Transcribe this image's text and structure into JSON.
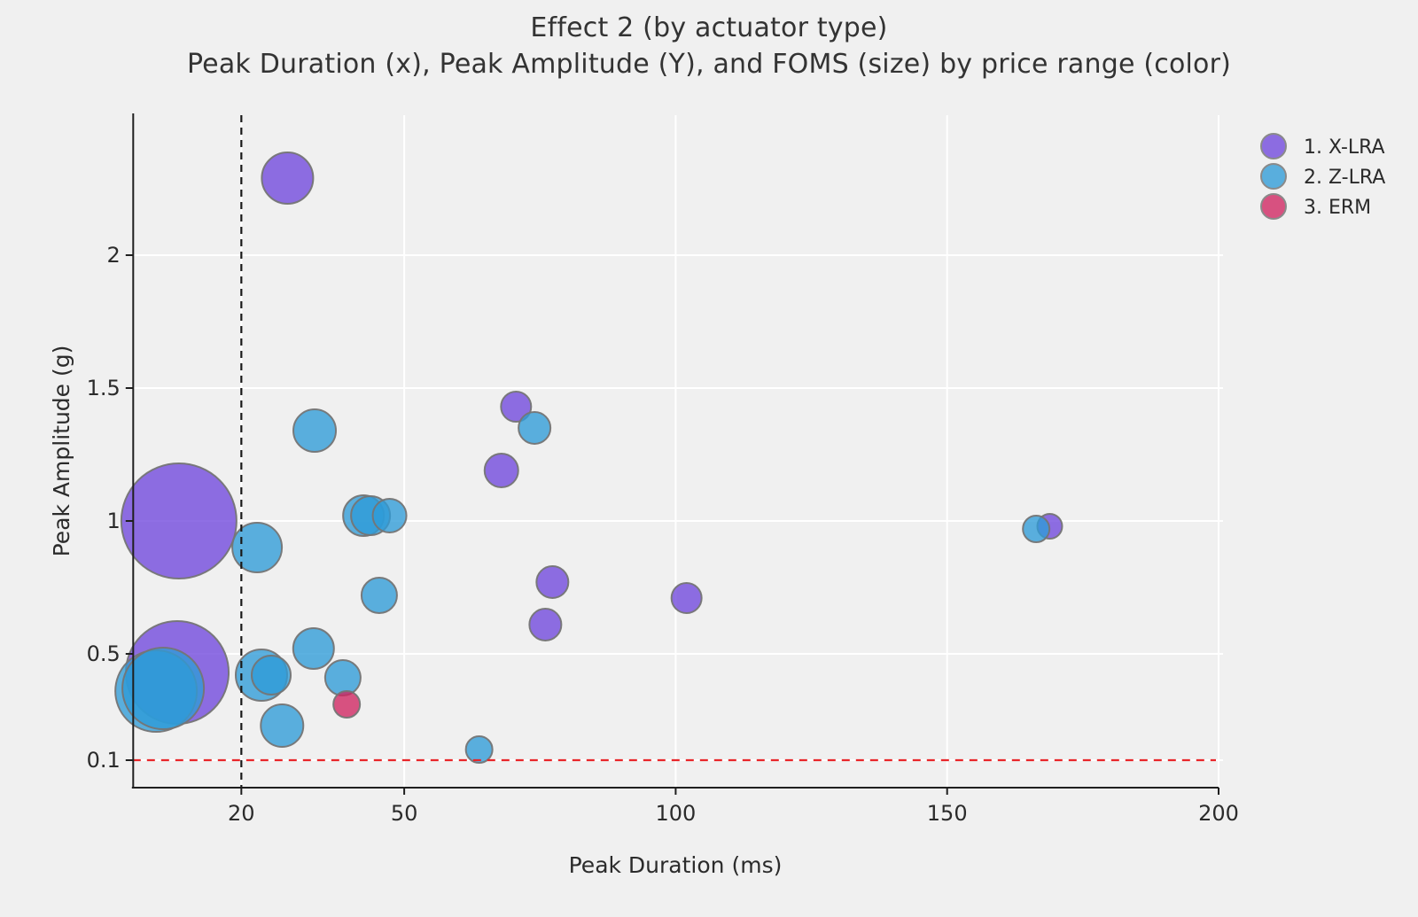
{
  "page": {
    "background": "#f0f0f0"
  },
  "chart_data": {
    "type": "scatter",
    "title": "Effect 2 (by actuator type)",
    "subtitle": "Peak Duration (x), Peak Amplitude (Y), and FOMS (size) by price range (color)",
    "xlabel": "Peak Duration (ms)",
    "ylabel": "Peak Amplitude (g)",
    "x_ticks": [
      20,
      50,
      100,
      150,
      200
    ],
    "y_ticks": [
      0.1,
      0.5,
      1,
      1.5,
      2
    ],
    "xlim": [
      0,
      200
    ],
    "ylim": [
      0,
      2.53
    ],
    "grid": true,
    "legend_position": "top-right",
    "size_encoding": "FOMS (bubble size)",
    "reference_lines": [
      {
        "axis": "x",
        "value": 20,
        "style": "dashed",
        "color": "#1a1a1a"
      },
      {
        "axis": "y",
        "value": 0.1,
        "style": "dashed",
        "color": "#e8262a"
      }
    ],
    "series": [
      {
        "name": "1. X-LRA",
        "color": "#6F46DC",
        "points": [
          {
            "x": 28.5,
            "y": 2.29,
            "r": 29
          },
          {
            "x": 8.5,
            "y": 1.0,
            "r": 65
          },
          {
            "x": 70.6,
            "y": 1.43,
            "r": 17
          },
          {
            "x": 67.9,
            "y": 1.19,
            "r": 19
          },
          {
            "x": 77.3,
            "y": 0.77,
            "r": 18
          },
          {
            "x": 102,
            "y": 0.71,
            "r": 17
          },
          {
            "x": 76,
            "y": 0.61,
            "r": 18
          },
          {
            "x": 8.2,
            "y": 0.43,
            "r": 58
          },
          {
            "x": 168.9,
            "y": 0.98,
            "r": 14
          }
        ]
      },
      {
        "name": "2. Z-LRA",
        "color": "#2E9BD7",
        "points": [
          {
            "x": 4.3,
            "y": 0.36,
            "r": 46
          },
          {
            "x": 5.6,
            "y": 0.37,
            "r": 46
          },
          {
            "x": 22.9,
            "y": 0.9,
            "r": 28
          },
          {
            "x": 33.5,
            "y": 1.34,
            "r": 24
          },
          {
            "x": 42.5,
            "y": 1.02,
            "r": 23
          },
          {
            "x": 43.8,
            "y": 1.02,
            "r": 22
          },
          {
            "x": 47.3,
            "y": 1.02,
            "r": 19
          },
          {
            "x": 45.4,
            "y": 0.72,
            "r": 20
          },
          {
            "x": 33.3,
            "y": 0.52,
            "r": 23
          },
          {
            "x": 23.7,
            "y": 0.42,
            "r": 29
          },
          {
            "x": 25.5,
            "y": 0.42,
            "r": 22
          },
          {
            "x": 38.7,
            "y": 0.41,
            "r": 20
          },
          {
            "x": 27.5,
            "y": 0.23,
            "r": 24
          },
          {
            "x": 63.8,
            "y": 0.14,
            "r": 15
          },
          {
            "x": 166.4,
            "y": 0.97,
            "r": 15
          },
          {
            "x": 74.0,
            "y": 1.35,
            "r": 18
          }
        ]
      },
      {
        "name": "3. ERM",
        "color": "#CF2460",
        "points": [
          {
            "x": 39.4,
            "y": 0.31,
            "r": 15
          }
        ]
      }
    ]
  },
  "style": {
    "bubble_opacity": 0.78,
    "bubble_stroke": "#757575",
    "grid_color": "#ffffff",
    "axis_color": "#1f1f1f",
    "text_color": "#2b2b2b"
  }
}
